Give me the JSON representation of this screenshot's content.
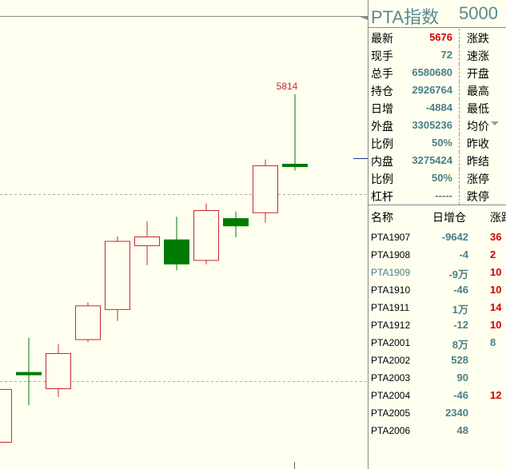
{
  "chart": {
    "high_marker": "5814",
    "colors": {
      "up": "#c82828",
      "down": "#007a00",
      "grid": "#aaaaaa"
    },
    "candles": [
      {
        "o": 5340,
        "c": 5412,
        "h": 5428,
        "l": 5340
      },
      {
        "o": 5433,
        "c": 5433,
        "h": 5482,
        "l": 5390
      },
      {
        "o": 5413,
        "c": 5461,
        "h": 5473,
        "l": 5401
      },
      {
        "o": 5480,
        "c": 5526,
        "h": 5530,
        "l": 5476
      },
      {
        "o": 5521,
        "c": 5614,
        "h": 5620,
        "l": 5505
      },
      {
        "o": 5608,
        "c": 5620,
        "h": 5641,
        "l": 5581
      },
      {
        "o": 5616,
        "c": 5582,
        "h": 5647,
        "l": 5574
      },
      {
        "o": 5588,
        "c": 5656,
        "h": 5665,
        "l": 5582
      },
      {
        "o": 5645,
        "c": 5634,
        "h": 5654,
        "l": 5619
      },
      {
        "o": 5653,
        "c": 5717,
        "h": 5725,
        "l": 5639
      },
      {
        "o": 5720,
        "c": 5717,
        "h": 5814,
        "l": 5710
      }
    ]
  },
  "panel": {
    "title_name": "PTA指数",
    "title_code": "5000",
    "quote": [
      {
        "label": "最新",
        "value": "5676",
        "color": "red",
        "label2": "涨跌"
      },
      {
        "label": "现手",
        "value": "72",
        "color": "teal",
        "label2": "速涨"
      },
      {
        "label": "总手",
        "value": "6580680",
        "color": "teal",
        "label2": "开盘"
      },
      {
        "label": "持仓",
        "value": "2926764",
        "color": "teal",
        "label2": "最高"
      },
      {
        "label": "日增",
        "value": "-4884",
        "color": "teal",
        "label2": "最低"
      },
      {
        "label": "外盘",
        "value": "3305236",
        "color": "teal",
        "label2": "均价"
      },
      {
        "label": "比例",
        "value": "50%",
        "color": "teal",
        "label2": "昨收"
      },
      {
        "label": "内盘",
        "value": "3275424",
        "color": "teal",
        "label2": "昨结"
      },
      {
        "label": "比例",
        "value": "50%",
        "color": "teal",
        "label2": "涨停"
      },
      {
        "label": "杠杆",
        "value": "-----",
        "color": "teal",
        "label2": "跌停"
      }
    ],
    "list_header": {
      "name": "名称",
      "oi": "日增仓",
      "chg": "涨跌"
    },
    "contracts": [
      {
        "name": "PTA1907",
        "oi": "-9642",
        "chg": "36",
        "chg_color": "red"
      },
      {
        "name": "PTA1908",
        "oi": "-4",
        "chg": "2",
        "chg_color": "red"
      },
      {
        "name": "PTA1909",
        "oi": "-9万",
        "chg": "10",
        "chg_color": "red",
        "selected": true
      },
      {
        "name": "PTA1910",
        "oi": "-46",
        "chg": "10",
        "chg_color": "red"
      },
      {
        "name": "PTA1911",
        "oi": "1万",
        "chg": "14",
        "chg_color": "red"
      },
      {
        "name": "PTA1912",
        "oi": "-12",
        "chg": "10",
        "chg_color": "red"
      },
      {
        "name": "PTA2001",
        "oi": "8万",
        "chg": "8",
        "chg_color": "teal"
      },
      {
        "name": "PTA2002",
        "oi": "528",
        "chg": "",
        "chg_color": "teal"
      },
      {
        "name": "PTA2003",
        "oi": "90",
        "chg": "",
        "chg_color": "teal"
      },
      {
        "name": "PTA2004",
        "oi": "-46",
        "chg": "12",
        "chg_color": "red"
      },
      {
        "name": "PTA2005",
        "oi": "2340",
        "chg": "",
        "chg_color": "teal"
      },
      {
        "name": "PTA2006",
        "oi": "48",
        "chg": "",
        "chg_color": "teal"
      }
    ]
  }
}
